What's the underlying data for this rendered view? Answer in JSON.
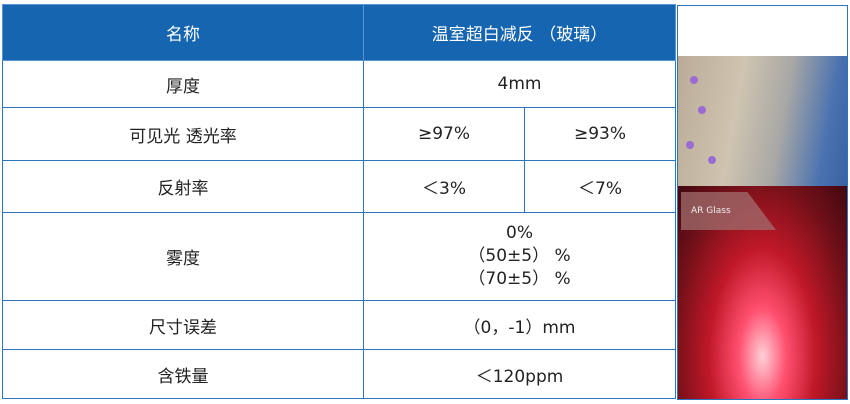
{
  "table": {
    "header": [
      "名称",
      "温室超白减反 （玻璃）"
    ],
    "rows": [
      {
        "name": "厚度",
        "value": "4mm"
      },
      {
        "name": "可见光 透光率",
        "values": [
          "≥97%",
          "≥93%"
        ]
      },
      {
        "name": "反射率",
        "values": [
          "＜3%",
          "＜7%"
        ]
      },
      {
        "name": "雾度",
        "lines": [
          "0%",
          "（50±5） %",
          "（70±5） %"
        ]
      },
      {
        "name": "尺寸误差",
        "value": "（0，-1）mm"
      },
      {
        "name": "含铁量",
        "value": "＜120ppm"
      }
    ]
  },
  "image": {
    "caption": "AR Glass"
  },
  "colors": {
    "header": "#1565b0",
    "border": "#2a74c0"
  }
}
